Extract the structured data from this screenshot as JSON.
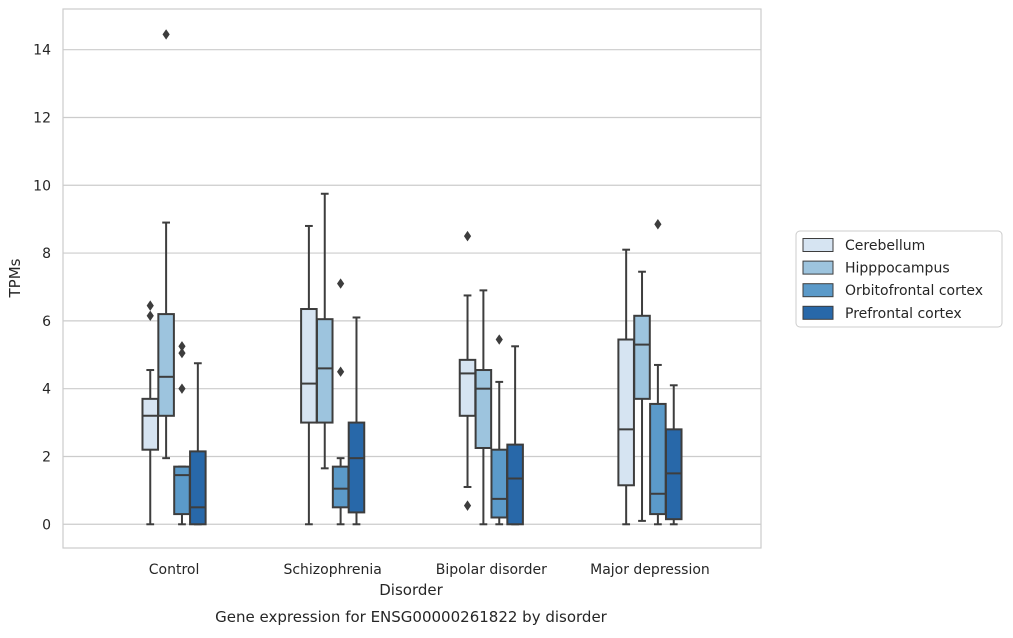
{
  "chart_data": {
    "type": "box",
    "title": "Gene expression for ENSG00000261822 by disorder",
    "xlabel": "Disorder",
    "ylabel": "TPMs",
    "ylim": [
      -0.7,
      15.2
    ],
    "yticks": [
      0,
      2,
      4,
      6,
      8,
      10,
      12,
      14
    ],
    "ytick_labels": [
      "0",
      "2",
      "4",
      "6",
      "8",
      "10",
      "12",
      "14"
    ],
    "grid": true,
    "legend_position": "right",
    "categories": [
      "Control",
      "Schizophrenia",
      "Bipolar disorder",
      "Major depression"
    ],
    "series": [
      {
        "name": "Cerebellum",
        "color": "#d6e4f2",
        "boxes": [
          {
            "whisker_low": 0.0,
            "q1": 2.2,
            "median": 3.2,
            "q3": 3.7,
            "whisker_high": 4.55,
            "outliers": [
              6.15,
              6.45
            ]
          },
          {
            "whisker_low": 0.0,
            "q1": 3.0,
            "median": 4.15,
            "q3": 6.35,
            "whisker_high": 8.8,
            "outliers": []
          },
          {
            "whisker_low": 1.1,
            "q1": 3.2,
            "median": 4.45,
            "q3": 4.85,
            "whisker_high": 6.75,
            "outliers": [
              0.55,
              8.5
            ]
          },
          {
            "whisker_low": 0.0,
            "q1": 1.15,
            "median": 2.8,
            "q3": 5.45,
            "whisker_high": 8.1,
            "outliers": []
          }
        ]
      },
      {
        "name": "Hipppocampus",
        "color": "#9dc4de",
        "boxes": [
          {
            "whisker_low": 1.95,
            "q1": 3.2,
            "median": 4.35,
            "q3": 6.2,
            "whisker_high": 8.9,
            "outliers": [
              14.45
            ]
          },
          {
            "whisker_low": 1.65,
            "q1": 3.0,
            "median": 4.6,
            "q3": 6.05,
            "whisker_high": 9.75,
            "outliers": []
          },
          {
            "whisker_low": 0.0,
            "q1": 2.25,
            "median": 4.0,
            "q3": 4.55,
            "whisker_high": 6.9,
            "outliers": []
          },
          {
            "whisker_low": 0.1,
            "q1": 3.7,
            "median": 5.3,
            "q3": 6.15,
            "whisker_high": 7.45,
            "outliers": []
          }
        ]
      },
      {
        "name": "Orbitofrontal cortex",
        "color": "#5b9ac9",
        "boxes": [
          {
            "whisker_low": 0.0,
            "q1": 0.3,
            "median": 1.45,
            "q3": 1.7,
            "whisker_high": 1.7,
            "outliers": [
              4.0,
              5.05,
              5.25
            ]
          },
          {
            "whisker_low": 0.0,
            "q1": 0.5,
            "median": 1.05,
            "q3": 1.7,
            "whisker_high": 1.95,
            "outliers": [
              4.5,
              7.1
            ]
          },
          {
            "whisker_low": 0.0,
            "q1": 0.2,
            "median": 0.75,
            "q3": 2.2,
            "whisker_high": 4.2,
            "outliers": [
              5.45
            ]
          },
          {
            "whisker_low": 0.0,
            "q1": 0.3,
            "median": 0.9,
            "q3": 3.55,
            "whisker_high": 4.7,
            "outliers": [
              8.85
            ]
          }
        ]
      },
      {
        "name": "Prefrontal cortex",
        "color": "#2868a9",
        "boxes": [
          {
            "whisker_low": 0.0,
            "q1": 0.0,
            "median": 0.5,
            "q3": 2.15,
            "whisker_high": 4.75,
            "outliers": []
          },
          {
            "whisker_low": 0.0,
            "q1": 0.35,
            "median": 1.95,
            "q3": 3.0,
            "whisker_high": 6.1,
            "outliers": []
          },
          {
            "whisker_low": 0.0,
            "q1": 0.0,
            "median": 1.35,
            "q3": 2.35,
            "whisker_high": 5.25,
            "outliers": []
          },
          {
            "whisker_low": 0.0,
            "q1": 0.15,
            "median": 1.5,
            "q3": 2.8,
            "whisker_high": 4.1,
            "outliers": []
          }
        ]
      }
    ]
  }
}
